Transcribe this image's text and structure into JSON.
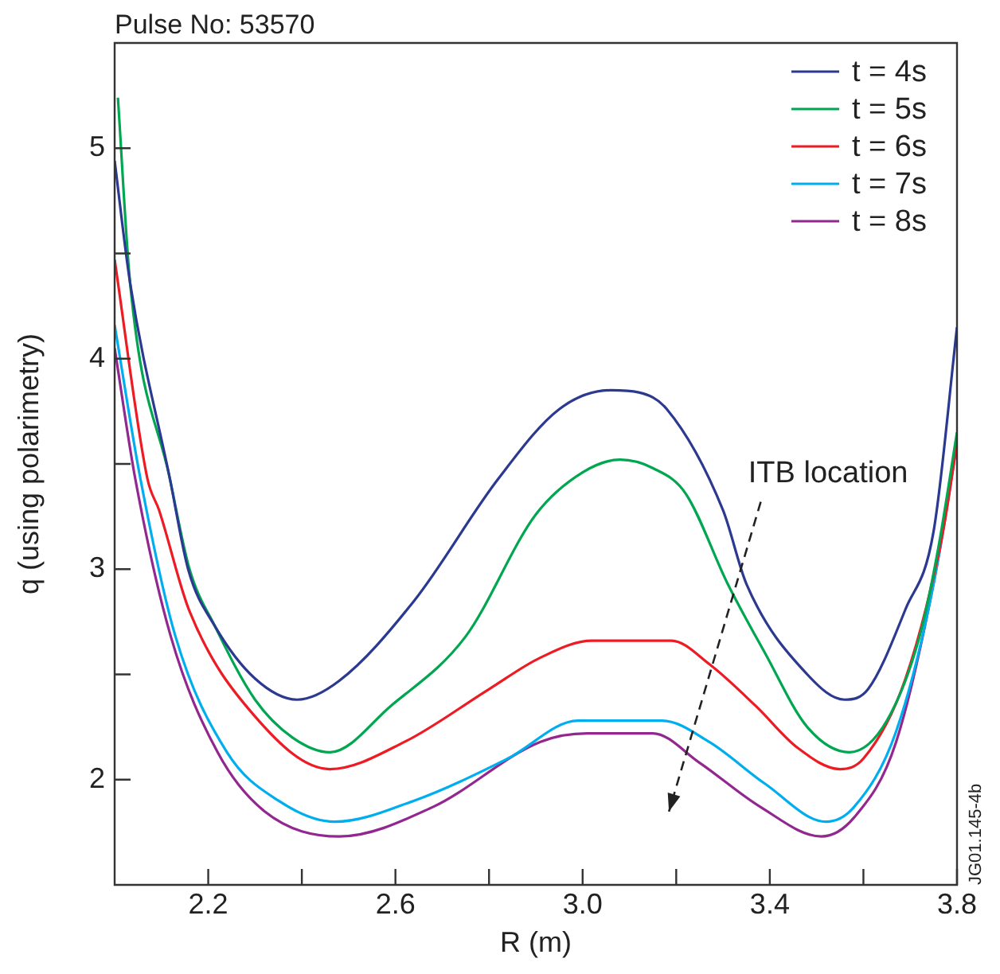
{
  "chart_data": {
    "type": "line",
    "title": "Pulse No: 53570",
    "xlabel": "R (m)",
    "ylabel": "q (using polarimetry)",
    "xlim": [
      2.0,
      3.8
    ],
    "xticks": [
      2.2,
      {
        "value": 2.4,
        "label": null
      },
      2.6,
      {
        "value": 2.8,
        "label": null
      },
      {
        "value": 3,
        "label": "3.0"
      },
      {
        "value": 3.2,
        "label": null
      },
      3.4,
      {
        "value": 3.6,
        "label": null
      },
      3.8
    ],
    "ylim": [
      1.5,
      5.5
    ],
    "yticks": [
      2,
      {
        "value": 2.5,
        "label": null
      },
      3,
      {
        "value": 3.5,
        "label": null
      },
      4,
      {
        "value": 4.5,
        "label": null
      },
      5
    ],
    "grid": false,
    "legend": "top right",
    "marker": "none",
    "line_style": "solid",
    "series": [
      {
        "name": "t = 4s",
        "color": "#2b3990",
        "x": [
          2.0,
          2.033,
          2.118,
          2.157,
          2.214,
          2.3,
          2.39,
          2.48,
          2.64,
          2.82,
          2.95,
          3.06,
          3.12,
          3.18,
          3.3,
          3.35,
          3.48,
          3.56,
          3.61,
          3.69,
          3.75,
          3.8
        ],
        "values": [
          4.94,
          4.36,
          3.43,
          3.0,
          2.73,
          2.48,
          2.38,
          2.47,
          2.85,
          3.43,
          3.76,
          3.85,
          3.84,
          3.76,
          3.28,
          2.93,
          2.5,
          2.38,
          2.43,
          2.81,
          3.18,
          4.15
        ]
      },
      {
        "name": "t = 5s",
        "color": "#00a650",
        "x": [
          2.007,
          2.033,
          2.118,
          2.16,
          2.214,
          2.3,
          2.38,
          2.46,
          2.59,
          2.75,
          2.9,
          3.0,
          3.08,
          3.15,
          3.22,
          3.31,
          3.39,
          3.48,
          3.57,
          3.65,
          3.72,
          3.76,
          3.8
        ],
        "values": [
          5.24,
          4.36,
          3.43,
          3.0,
          2.73,
          2.38,
          2.2,
          2.13,
          2.35,
          2.68,
          3.26,
          3.46,
          3.52,
          3.48,
          3.36,
          2.93,
          2.6,
          2.25,
          2.13,
          2.28,
          2.68,
          3.1,
          3.65
        ]
      },
      {
        "name": "t = 6s",
        "color": "#ed1c24",
        "x": [
          2.0,
          2.07,
          2.095,
          2.16,
          2.3,
          2.46,
          2.62,
          2.8,
          2.91,
          3.02,
          3.19,
          3.27,
          3.37,
          3.46,
          3.55,
          3.6,
          3.69,
          3.77,
          3.8
        ],
        "values": [
          4.47,
          3.43,
          3.28,
          2.8,
          2.3,
          2.05,
          2.18,
          2.43,
          2.58,
          2.66,
          2.66,
          2.55,
          2.35,
          2.15,
          2.05,
          2.1,
          2.48,
          3.18,
          3.6
        ]
      },
      {
        "name": "t = 7s",
        "color": "#00aeef",
        "x": [
          2.0,
          2.055,
          2.13,
          2.24,
          2.35,
          2.47,
          2.64,
          2.84,
          2.99,
          3.17,
          3.27,
          3.39,
          3.52,
          3.58,
          3.67,
          3.75,
          3.8
        ],
        "values": [
          4.16,
          3.43,
          2.68,
          2.13,
          1.9,
          1.8,
          1.9,
          2.1,
          2.28,
          2.28,
          2.18,
          1.98,
          1.8,
          1.87,
          2.23,
          2.93,
          3.62
        ]
      },
      {
        "name": "t = 8s",
        "color": "#92278f",
        "x": [
          2.0,
          2.044,
          2.12,
          2.22,
          2.32,
          2.48,
          2.68,
          2.91,
          3.01,
          3.15,
          3.25,
          3.38,
          3.51,
          3.58,
          3.67,
          3.76,
          3.8
        ],
        "values": [
          4.05,
          3.43,
          2.68,
          2.13,
          1.85,
          1.73,
          1.87,
          2.18,
          2.22,
          2.22,
          2.08,
          1.87,
          1.73,
          1.82,
          2.18,
          3.05,
          3.6
        ]
      }
    ],
    "annotations": [
      "ITB location",
      "JG01.145-4b"
    ]
  }
}
